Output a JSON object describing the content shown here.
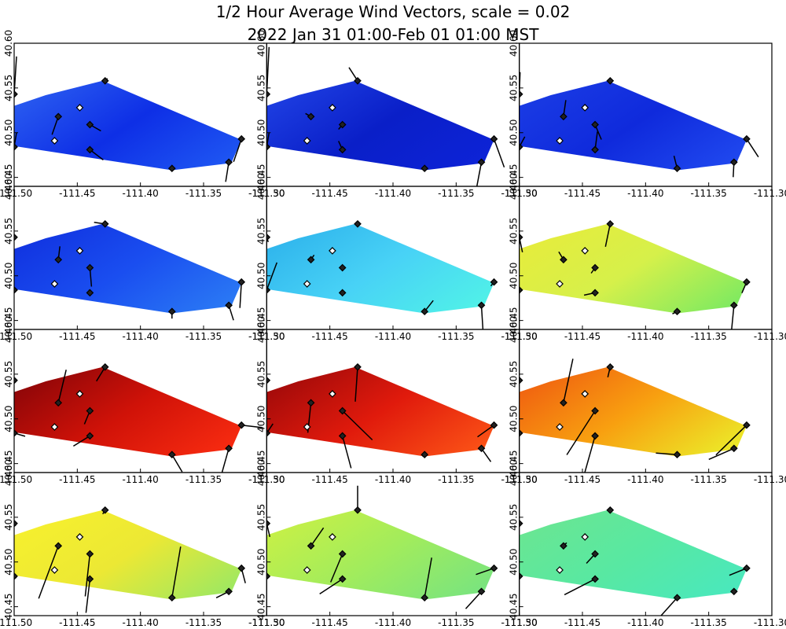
{
  "chart_data": {
    "type": "wind-vector-map-grid",
    "title_line1": "1/2 Hour Average Wind Vectors, scale =  0.02",
    "title_line2": "2022 Jan 31 01:00-Feb 01 01:00 MST",
    "xlim": [
      -111.5,
      -111.3
    ],
    "ylim": [
      40.44,
      40.6
    ],
    "x_ticks": [
      "-111.50",
      "-111.45",
      "-111.40",
      "-111.35",
      "-111.30"
    ],
    "y_ticks": [
      "40.45",
      "40.50",
      "40.55",
      "40.60"
    ],
    "grid_rows": 4,
    "grid_cols": 3,
    "domain_polygon": [
      [
        -111.5,
        40.53
      ],
      [
        -111.475,
        40.542
      ],
      [
        -111.43,
        40.558
      ],
      [
        -111.32,
        40.492
      ],
      [
        -111.328,
        40.466
      ],
      [
        -111.375,
        40.458
      ],
      [
        -111.5,
        40.485
      ]
    ],
    "stations": [
      {
        "lon": -111.5,
        "lat": 40.543,
        "filled": true
      },
      {
        "lon": -111.5,
        "lat": 40.484,
        "filled": true
      },
      {
        "lon": -111.465,
        "lat": 40.518,
        "filled": true
      },
      {
        "lon": -111.468,
        "lat": 40.491,
        "filled": false
      },
      {
        "lon": -111.448,
        "lat": 40.528,
        "filled": false
      },
      {
        "lon": -111.44,
        "lat": 40.509,
        "filled": true
      },
      {
        "lon": -111.44,
        "lat": 40.481,
        "filled": true
      },
      {
        "lon": -111.428,
        "lat": 40.558,
        "filled": true
      },
      {
        "lon": -111.375,
        "lat": 40.46,
        "filled": true
      },
      {
        "lon": -111.33,
        "lat": 40.467,
        "filled": true
      },
      {
        "lon": -111.32,
        "lat": 40.493,
        "filled": true
      }
    ],
    "panels": [
      {
        "colors": [
          "#2a5cf0",
          "#0e2fe6",
          "#1e55f2"
        ],
        "vectors": [
          [
            0.3,
            4.8
          ],
          [
            0.3,
            1.8
          ],
          [
            -0.8,
            -2.3
          ],
          [
            0,
            0
          ],
          [
            0,
            0
          ],
          [
            1.4,
            -0.8
          ],
          [
            1.7,
            -1.3
          ],
          [
            0.3,
            0.3
          ],
          [
            0.2,
            0
          ],
          [
            -0.4,
            -2.5
          ],
          [
            -1,
            -2.9
          ]
        ]
      },
      {
        "colors": [
          "#1e3fe2",
          "#0a1fc8",
          "#0d23d6"
        ],
        "vectors": [
          [
            0.3,
            6
          ],
          [
            0.3,
            1.8
          ],
          [
            -0.7,
            0.4
          ],
          [
            0,
            0
          ],
          [
            0,
            0
          ],
          [
            -0.5,
            -0.6
          ],
          [
            -0.5,
            1.1
          ],
          [
            -1.1,
            1.7
          ],
          [
            0,
            0
          ],
          [
            -0.7,
            -3.7
          ],
          [
            1.3,
            -3.6
          ]
        ]
      },
      {
        "colors": [
          "#1a3be4",
          "#0f2adc",
          "#1f47ee"
        ],
        "vectors": [
          [
            0.1,
            2.8
          ],
          [
            0.7,
            1.3
          ],
          [
            0.3,
            2.1
          ],
          [
            0,
            0
          ],
          [
            0,
            0
          ],
          [
            0.8,
            -1.9
          ],
          [
            0.3,
            2.3
          ],
          [
            -0.3,
            0
          ],
          [
            -0.4,
            1.6
          ],
          [
            -0.1,
            -1.9
          ],
          [
            1.5,
            -2.3
          ]
        ]
      },
      {
        "colors": [
          "#1133e0",
          "#1a4ef0",
          "#2a78f4"
        ],
        "vectors": [
          [
            -0.1,
            0.5
          ],
          [
            0,
            0
          ],
          [
            0.2,
            1.7
          ],
          [
            0,
            0
          ],
          [
            0,
            0
          ],
          [
            0.2,
            -2.4
          ],
          [
            -0.1,
            0.4
          ],
          [
            -1.4,
            0.2
          ],
          [
            0,
            -0.9
          ],
          [
            0.6,
            -1.9
          ],
          [
            -0.2,
            -3.3
          ]
        ]
      },
      {
        "colors": [
          "#2fb4ec",
          "#48d2f6",
          "#50f0e8"
        ],
        "vectors": [
          [
            0.2,
            -0.6
          ],
          [
            1.3,
            3.5
          ],
          [
            0.4,
            0.6
          ],
          [
            0,
            0
          ],
          [
            0,
            0
          ],
          [
            0,
            0
          ],
          [
            0,
            0
          ],
          [
            0,
            0
          ],
          [
            1.1,
            1.4
          ],
          [
            0.2,
            -3.2
          ],
          [
            -0.4,
            -0.5
          ]
        ]
      },
      {
        "colors": [
          "#e6ec3c",
          "#d6f04a",
          "#80ea60"
        ],
        "vectors": [
          [
            0.4,
            -1.9
          ],
          [
            -0.4,
            0.2
          ],
          [
            -0.6,
            1
          ],
          [
            0,
            0
          ],
          [
            0,
            0
          ],
          [
            -0.5,
            -0.7
          ],
          [
            -1.4,
            -0.3
          ],
          [
            -0.6,
            -2.9
          ],
          [
            -0.6,
            -0.3
          ],
          [
            -0.3,
            -3.1
          ],
          [
            -0.6,
            -1.4
          ]
        ]
      },
      {
        "colors": [
          "#8c0608",
          "#d01208",
          "#f62a10"
        ],
        "vectors": [
          [
            0.1,
            0.1
          ],
          [
            1.4,
            -0.4
          ],
          [
            1,
            4.2
          ],
          [
            0,
            0
          ],
          [
            0,
            0
          ],
          [
            -0.7,
            -1.7
          ],
          [
            -2.1,
            -1.3
          ],
          [
            -1.1,
            -1.8
          ],
          [
            1.3,
            -2.2
          ],
          [
            -0.9,
            -3.2
          ],
          [
            2.6,
            -0.3
          ]
        ]
      },
      {
        "colors": [
          "#a00a0a",
          "#e01a0c",
          "#fa5016"
        ],
        "vectors": [
          [
            0,
            0
          ],
          [
            0.8,
            1.2
          ],
          [
            -0.4,
            -3.8
          ],
          [
            0,
            0
          ],
          [
            0,
            0
          ],
          [
            3.8,
            -3.7
          ],
          [
            1.1,
            -4.1
          ],
          [
            -0.3,
            -4.4
          ],
          [
            -0.3,
            -0.2
          ],
          [
            1.2,
            -1.7
          ],
          [
            -2.1,
            -1.5
          ]
        ]
      },
      {
        "colors": [
          "#f06010",
          "#f8a010",
          "#ece828"
        ],
        "vectors": [
          [
            -0.5,
            0.4
          ],
          [
            0,
            0
          ],
          [
            1.2,
            5.6
          ],
          [
            0,
            0
          ],
          [
            0,
            0
          ],
          [
            -3.6,
            -5.6
          ],
          [
            -1.8,
            -6.4
          ],
          [
            -0.3,
            -1.3
          ],
          [
            -2.7,
            0.2
          ],
          [
            -3.2,
            -1.4
          ],
          [
            -3.9,
            -3.8
          ]
        ]
      },
      {
        "colors": [
          "#f6f02e",
          "#ece834",
          "#a0e860"
        ],
        "vectors": [
          [
            0.2,
            -0.3
          ],
          [
            0.3,
            -0.2
          ],
          [
            -2.5,
            -6.7
          ],
          [
            0,
            0
          ],
          [
            0,
            0
          ],
          [
            -0.6,
            -5.4
          ],
          [
            -0.5,
            -4.3
          ],
          [
            -0.3,
            -0.5
          ],
          [
            1.1,
            6.5
          ],
          [
            -1.6,
            -0.8
          ],
          [
            0.5,
            -1.9
          ]
        ]
      },
      {
        "colors": [
          "#c8f046",
          "#a2ec5c",
          "#7ae47e"
        ],
        "vectors": [
          [
            0.4,
            -1.7
          ],
          [
            0.3,
            -0.2
          ],
          [
            1.6,
            2.3
          ],
          [
            0,
            0
          ],
          [
            0,
            0
          ],
          [
            -1.5,
            -3.6
          ],
          [
            -2.9,
            -1.9
          ],
          [
            0,
            3.1
          ],
          [
            0.9,
            5.1
          ],
          [
            -2,
            -2.2
          ],
          [
            -2.3,
            -0.8
          ]
        ]
      },
      {
        "colors": [
          "#6ae692",
          "#58e8a2",
          "#4ae8bc"
        ],
        "vectors": [
          [
            -0.3,
            -0.3
          ],
          [
            -0.3,
            -0.6
          ],
          [
            0.4,
            0.4
          ],
          [
            0,
            0
          ],
          [
            0,
            0
          ],
          [
            -1.1,
            -1.2
          ],
          [
            -3.9,
            -2
          ],
          [
            -0.3,
            0
          ],
          [
            -2.6,
            -2.9
          ],
          [
            -0.3,
            0
          ],
          [
            -2.2,
            -0.9
          ]
        ]
      }
    ]
  }
}
